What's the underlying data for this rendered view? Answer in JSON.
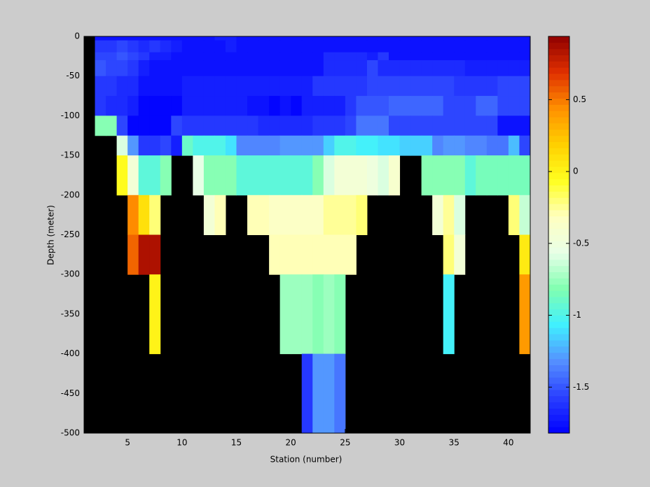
{
  "chart_data": {
    "type": "heatmap",
    "x_label": "Station (number)",
    "y_label": "Depth (meter)",
    "x_bins": [
      1,
      2,
      3,
      4,
      5,
      6,
      7,
      8,
      9,
      10,
      11,
      12,
      13,
      14,
      15,
      16,
      17,
      18,
      19,
      20,
      21,
      22,
      23,
      24,
      25,
      26,
      27,
      28,
      29,
      30,
      31,
      32,
      33,
      34,
      35,
      36,
      37,
      38,
      39,
      40,
      41,
      42
    ],
    "y_bins": [
      0,
      -5,
      -20,
      -30,
      -50,
      -75,
      -100,
      -125,
      -150,
      -200,
      -250,
      -300,
      -400,
      -500
    ],
    "z": [
      [
        null,
        -1.75,
        -1.75,
        -1.75,
        -1.75,
        -1.75,
        -1.75,
        -1.75,
        -1.75,
        -1.75,
        -1.75,
        -1.75,
        -1.7,
        -1.7,
        -1.75,
        -1.75,
        -1.75,
        -1.75,
        -1.75,
        -1.75,
        -1.75,
        -1.75,
        -1.75,
        -1.75,
        -1.75,
        -1.75,
        -1.75,
        -1.75,
        -1.75,
        -1.75,
        -1.75,
        -1.75,
        -1.75,
        -1.75,
        -1.75,
        -1.75,
        -1.75,
        -1.75,
        -1.75,
        -1.75,
        -1.75
      ],
      [
        null,
        -1.6,
        -1.6,
        -1.55,
        -1.6,
        -1.65,
        -1.6,
        -1.65,
        -1.7,
        -1.75,
        -1.75,
        -1.75,
        -1.75,
        -1.7,
        -1.75,
        -1.75,
        -1.75,
        -1.75,
        -1.75,
        -1.75,
        -1.75,
        -1.75,
        -1.75,
        -1.75,
        -1.75,
        -1.75,
        -1.75,
        -1.75,
        -1.75,
        -1.75,
        -1.75,
        -1.75,
        -1.75,
        -1.75,
        -1.75,
        -1.75,
        -1.75,
        -1.75,
        -1.75,
        -1.75,
        -1.75
      ],
      [
        null,
        -1.55,
        -1.55,
        -1.5,
        -1.55,
        -1.6,
        -1.7,
        -1.7,
        -1.75,
        -1.75,
        -1.75,
        -1.75,
        -1.75,
        -1.75,
        -1.75,
        -1.75,
        -1.75,
        -1.75,
        -1.75,
        -1.75,
        -1.75,
        -1.75,
        -1.65,
        -1.65,
        -1.65,
        -1.65,
        -1.7,
        -1.6,
        -1.75,
        -1.75,
        -1.75,
        -1.75,
        -1.75,
        -1.75,
        -1.75,
        -1.75,
        -1.75,
        -1.75,
        -1.75,
        -1.75,
        -1.75
      ],
      [
        null,
        -1.5,
        -1.55,
        -1.55,
        -1.6,
        -1.7,
        -1.75,
        -1.75,
        -1.75,
        -1.75,
        -1.75,
        -1.75,
        -1.75,
        -1.75,
        -1.75,
        -1.75,
        -1.75,
        -1.75,
        -1.75,
        -1.75,
        -1.75,
        -1.75,
        -1.65,
        -1.65,
        -1.65,
        -1.65,
        -1.55,
        -1.65,
        -1.65,
        -1.65,
        -1.65,
        -1.65,
        -1.65,
        -1.65,
        -1.65,
        -1.7,
        -1.7,
        -1.7,
        -1.7,
        -1.7,
        -1.7
      ],
      [
        null,
        -1.6,
        -1.6,
        -1.65,
        -1.65,
        -1.75,
        -1.75,
        -1.75,
        -1.75,
        -1.7,
        -1.7,
        -1.7,
        -1.7,
        -1.7,
        -1.7,
        -1.7,
        -1.7,
        -1.7,
        -1.7,
        -1.7,
        -1.7,
        -1.6,
        -1.6,
        -1.6,
        -1.6,
        -1.6,
        -1.55,
        -1.55,
        -1.55,
        -1.55,
        -1.55,
        -1.55,
        -1.55,
        -1.55,
        -1.6,
        -1.6,
        -1.6,
        -1.6,
        -1.55,
        -1.55,
        -1.55
      ],
      [
        null,
        -1.6,
        -1.65,
        -1.65,
        -1.7,
        -1.8,
        -1.8,
        -1.8,
        -1.8,
        -1.7,
        -1.7,
        -1.7,
        -1.7,
        -1.7,
        -1.7,
        -1.75,
        -1.75,
        -1.8,
        -1.75,
        -1.8,
        -1.7,
        -1.7,
        -1.7,
        -1.7,
        -1.6,
        -1.5,
        -1.5,
        -1.5,
        -1.45,
        -1.45,
        -1.45,
        -1.45,
        -1.45,
        -1.55,
        -1.55,
        -1.55,
        -1.45,
        -1.45,
        -1.55,
        -1.55,
        -1.55
      ],
      [
        null,
        -0.8,
        -0.8,
        -1.55,
        -1.8,
        -1.8,
        -1.8,
        -1.8,
        -1.55,
        -1.6,
        -1.6,
        -1.6,
        -1.6,
        -1.6,
        -1.6,
        -1.6,
        -1.65,
        -1.65,
        -1.65,
        -1.65,
        -1.65,
        -1.6,
        -1.6,
        -1.6,
        -1.55,
        -1.4,
        -1.4,
        -1.4,
        -1.55,
        -1.55,
        -1.55,
        -1.55,
        -1.55,
        -1.55,
        -1.55,
        -1.55,
        -1.55,
        -1.55,
        -1.75,
        -1.75,
        -1.75
      ],
      [
        null,
        null,
        null,
        -0.6,
        -1.3,
        -1.6,
        -1.6,
        -1.55,
        -1.7,
        -0.9,
        -1.0,
        -1.0,
        -1.0,
        -1.1,
        -1.35,
        -1.35,
        -1.35,
        -1.35,
        -1.3,
        -1.3,
        -1.3,
        -1.3,
        -1.15,
        -1.0,
        -1.0,
        -1.05,
        -1.05,
        -1.1,
        -1.1,
        -1.15,
        -1.15,
        -1.15,
        -1.35,
        -1.3,
        -1.3,
        -1.35,
        -1.35,
        -1.4,
        -1.4,
        -1.2,
        -1.55
      ],
      [
        null,
        null,
        null,
        -0.05,
        -0.45,
        -0.95,
        -0.95,
        -0.8,
        null,
        null,
        -0.55,
        -0.8,
        -0.8,
        -0.8,
        -0.95,
        -0.95,
        -0.95,
        -0.95,
        -0.95,
        -0.95,
        -0.95,
        -0.8,
        -0.6,
        -0.45,
        -0.45,
        -0.45,
        -0.5,
        -0.6,
        -0.4,
        null,
        null,
        -0.8,
        -0.8,
        -0.8,
        -0.8,
        -0.95,
        -0.85,
        -0.85,
        -0.85,
        -0.85,
        -0.85
      ],
      [
        null,
        null,
        null,
        null,
        0.45,
        0.1,
        -0.2,
        null,
        null,
        null,
        null,
        -0.45,
        -0.3,
        null,
        null,
        -0.3,
        -0.3,
        -0.35,
        -0.35,
        -0.35,
        -0.35,
        -0.35,
        -0.25,
        -0.25,
        -0.25,
        -0.2,
        null,
        null,
        null,
        null,
        null,
        null,
        -0.45,
        -0.25,
        -0.6,
        null,
        null,
        null,
        null,
        -0.2,
        -0.65
      ],
      [
        null,
        null,
        null,
        null,
        0.55,
        0.85,
        0.85,
        null,
        null,
        null,
        null,
        null,
        null,
        null,
        null,
        null,
        null,
        -0.3,
        -0.3,
        -0.3,
        -0.3,
        -0.3,
        -0.3,
        -0.3,
        -0.3,
        null,
        null,
        null,
        null,
        null,
        null,
        null,
        null,
        -0.2,
        -0.45,
        null,
        null,
        null,
        null,
        null,
        0.05
      ],
      [
        null,
        null,
        null,
        null,
        null,
        null,
        0.0,
        null,
        null,
        null,
        null,
        null,
        null,
        null,
        null,
        null,
        null,
        null,
        -0.75,
        -0.75,
        -0.75,
        -0.8,
        -0.75,
        -0.8,
        null,
        null,
        null,
        null,
        null,
        null,
        null,
        null,
        null,
        -1.05,
        null,
        null,
        null,
        null,
        null,
        null,
        0.4
      ],
      [
        null,
        null,
        null,
        null,
        null,
        null,
        null,
        null,
        null,
        null,
        null,
        null,
        null,
        null,
        null,
        null,
        null,
        null,
        null,
        null,
        -1.6,
        -1.3,
        -1.3,
        -1.4,
        null,
        null,
        null,
        null,
        null,
        null,
        null,
        null,
        null,
        null,
        null,
        null,
        null,
        null,
        null,
        null,
        null
      ]
    ],
    "xlim": [
      1,
      42
    ],
    "ylim": [
      -500,
      0
    ],
    "xticks": [
      5,
      10,
      15,
      20,
      25,
      30,
      35,
      40
    ],
    "yticks": [
      0,
      -50,
      -100,
      -150,
      -200,
      -250,
      -300,
      -350,
      -400,
      -450,
      -500
    ],
    "clim": [
      -1.82,
      0.94
    ],
    "cticks": [
      -1.5,
      -1,
      -0.5,
      0,
      0.5
    ],
    "missing_color": "#000000",
    "colormap": [
      "#0000ff",
      "#2a40ff",
      "#5590ff",
      "#40f0ff",
      "#80ffb0",
      "#e8ffe8",
      "#ffffc0",
      "#ffff20",
      "#ffd000",
      "#ff9000",
      "#e03000",
      "#900000"
    ]
  }
}
